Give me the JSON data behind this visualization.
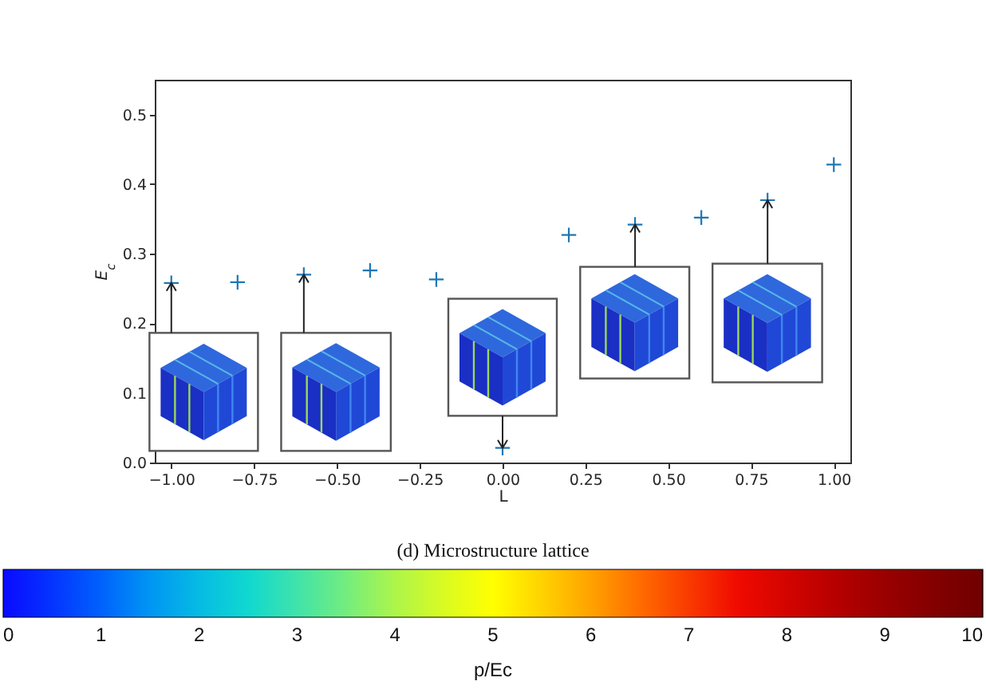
{
  "chart_data": {
    "type": "scatter",
    "xlabel": "L",
    "ylabel": "E$_{c}$",
    "clabel": "p/Ec",
    "annotations": [
      "(d) Microstructure lattice"
    ],
    "x": [
      -1,
      -0.8,
      -0.6,
      -0.4,
      -0.2,
      0,
      0.2,
      0.4,
      0.6,
      0.8,
      1
    ],
    "values": [
      0.258,
      0.259,
      0.27,
      0.276,
      0.263,
      0.021,
      0.327,
      0.342,
      0.352,
      0.377,
      0.428
    ],
    "color": "#1f77b4",
    "marker": "cross",
    "xlim": [
      -1.05,
      1.05
    ],
    "ylim": [
      0,
      0.55
    ],
    "xticks": [
      {
        "value": -1,
        "label": "−1.00"
      },
      {
        "value": -0.75,
        "label": "−0.75"
      },
      {
        "value": -0.5,
        "label": "−0.50"
      },
      {
        "value": -0.25,
        "label": "−0.25"
      },
      {
        "value": 0,
        "label": "0.00"
      },
      {
        "value": 0.25,
        "label": "0.25"
      },
      {
        "value": 0.5,
        "label": "0.50"
      },
      {
        "value": 0.75,
        "label": "0.75"
      },
      {
        "value": 1,
        "label": "1.00"
      }
    ],
    "yticks": [
      {
        "value": 0,
        "label": "0.0"
      },
      0.1,
      0.2,
      0.3,
      0.4,
      0.5
    ],
    "clim": [
      0,
      10
    ],
    "cticks": [
      0,
      1,
      2,
      3,
      4,
      5,
      6,
      7,
      8,
      9,
      10
    ]
  }
}
